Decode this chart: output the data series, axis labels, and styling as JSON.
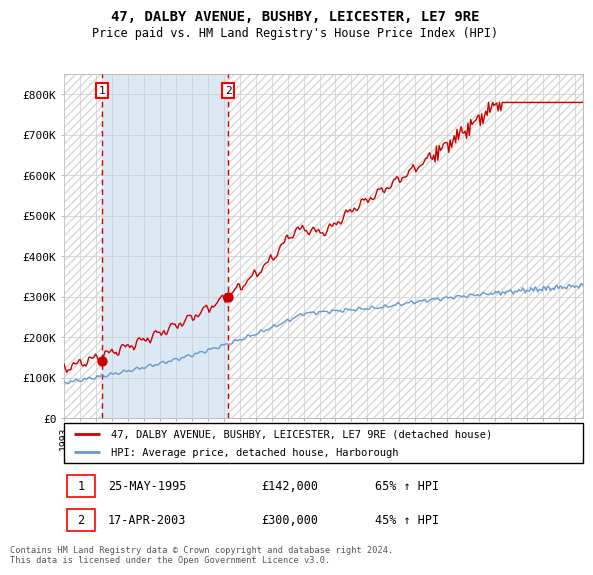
{
  "title": "47, DALBY AVENUE, BUSHBY, LEICESTER, LE7 9RE",
  "subtitle": "Price paid vs. HM Land Registry's House Price Index (HPI)",
  "legend_line1": "47, DALBY AVENUE, BUSHBY, LEICESTER, LE7 9RE (detached house)",
  "legend_line2": "HPI: Average price, detached house, Harborough",
  "footnote": "Contains HM Land Registry data © Crown copyright and database right 2024.\nThis data is licensed under the Open Government Licence v3.0.",
  "sale1_date": "25-MAY-1995",
  "sale1_price": 142000,
  "sale1_hpi": "65% ↑ HPI",
  "sale2_date": "17-APR-2003",
  "sale2_price": 300000,
  "sale2_hpi": "45% ↑ HPI",
  "sale1_year": 1995.39,
  "sale2_year": 2003.29,
  "hpi_color": "#6699cc",
  "price_color": "#cc0000",
  "bg_shaded_color": "#dce9f5",
  "hatch_color": "#cccccc",
  "grid_color": "#cccccc",
  "ylim": [
    0,
    850000
  ],
  "xlim": [
    1993,
    2025.5
  ],
  "yticks": [
    0,
    100000,
    200000,
    300000,
    400000,
    500000,
    600000,
    700000,
    800000
  ],
  "ytick_labels": [
    "£0",
    "£100K",
    "£200K",
    "£300K",
    "£400K",
    "£500K",
    "£600K",
    "£700K",
    "£800K"
  ]
}
